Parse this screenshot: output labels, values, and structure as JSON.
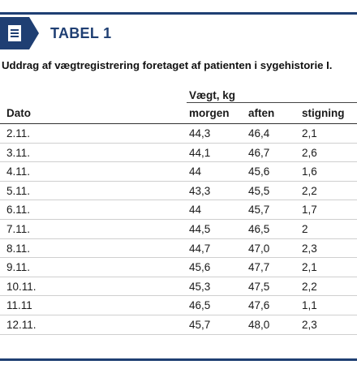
{
  "header": {
    "icon": "document-icon",
    "title": "TABEL 1",
    "accent_color": "#1f3f73"
  },
  "caption": "Uddrag af vægtregistrering foretaget af patienten i sygehistorie I.",
  "table": {
    "group_header": "Vægt, kg",
    "columns": [
      "Dato",
      "morgen",
      "aften",
      "stigning"
    ],
    "rows": [
      [
        "2.11.",
        "44,3",
        "46,4",
        "2,1"
      ],
      [
        "3.11.",
        "44,1",
        "46,7",
        "2,6"
      ],
      [
        "4.11.",
        "44",
        "45,6",
        "1,6"
      ],
      [
        "5.11.",
        "43,3",
        "45,5",
        "2,2"
      ],
      [
        "6.11.",
        "44",
        "45,7",
        "1,7"
      ],
      [
        "7.11.",
        "44,5",
        "46,5",
        "2"
      ],
      [
        "8.11.",
        "44,7",
        "47,0",
        "2,3"
      ],
      [
        "9.11.",
        "45,6",
        "47,7",
        "2,1"
      ],
      [
        "10.11.",
        "45,3",
        "47,5",
        "2,2"
      ],
      [
        "11.11",
        "46,5",
        "47,6",
        "1,1"
      ],
      [
        "12.11.",
        "45,7",
        "48,0",
        "2,3"
      ]
    ]
  }
}
